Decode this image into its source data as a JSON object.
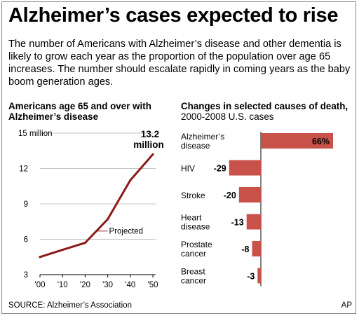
{
  "title": "Alzheimer’s cases expected to rise",
  "intro": "The number of Americans with Alzheimer’s disease and other dementia is likely to grow each year as the proportion of the population over age 65 increases. The number should escalate rapidly in coming years as the baby boom generation ages.",
  "source": "SOURCE: Alzheimer’s Association",
  "credit": "AP",
  "colors": {
    "line": "#8b1a1a",
    "bar": "#c8524a",
    "grid": "#b0b0b0"
  },
  "chart_data": [
    {
      "type": "line",
      "title": "Americans age 65 and over with Alzheimer’s disease",
      "x": [
        2000,
        2010,
        2020,
        2030,
        2040,
        2050
      ],
      "x_tick_labels": [
        "'00",
        "'10",
        "'20",
        "'30",
        "'40",
        "'50"
      ],
      "y_ticks": [
        3,
        6,
        9,
        12,
        15
      ],
      "y_tick_labels": [
        "3",
        "6",
        "9",
        "12",
        "15 million"
      ],
      "ylim": [
        3,
        15
      ],
      "series": [
        {
          "values": [
            4.5,
            5.1,
            5.7,
            7.7,
            11.0,
            13.2
          ]
        }
      ],
      "projected_from": 2020,
      "annotations": {
        "projected": "Projected",
        "endpoint_value": "13.2",
        "endpoint_unit": "million"
      },
      "grid": true
    },
    {
      "type": "bar",
      "orientation": "horizontal",
      "title": "Changes in selected causes of death,",
      "subtitle": "2000-2008 U.S. cases",
      "categories": [
        "Alzheimer’s disease",
        "HIV",
        "Stroke",
        "Heart disease",
        "Prostate cancer",
        "Breast cancer"
      ],
      "category_lines": [
        [
          "Alzheimer’s",
          "disease"
        ],
        [
          "HIV"
        ],
        [
          "Stroke"
        ],
        [
          "Heart",
          "disease"
        ],
        [
          "Prostate",
          "cancer"
        ],
        [
          "Breast",
          "cancer"
        ]
      ],
      "values": [
        66,
        -29,
        -20,
        -13,
        -8,
        -3
      ],
      "value_labels": [
        "66%",
        "-29",
        "-20",
        "-13",
        "-8",
        "-3"
      ],
      "unit": "percent"
    }
  ]
}
